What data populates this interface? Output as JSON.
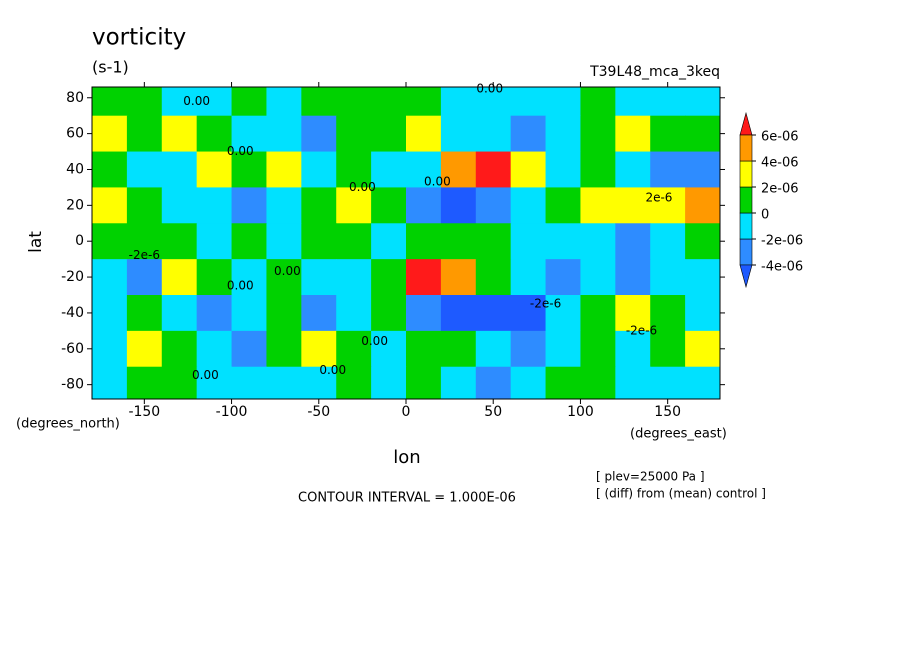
{
  "chart_data": {
    "type": "contour",
    "title": "vorticity",
    "units": "(s-1)",
    "dataset": "T39L48_mca_3keq",
    "x_label": "lon",
    "y_label": "lat",
    "x_units": "(degrees_east)",
    "y_units": "(degrees_north)",
    "footer": "CONTOUR INTERVAL = 1.000E-06",
    "notes": [
      "[ plev=25000 Pa ]",
      "[ (diff) from (mean) control ]"
    ],
    "xlim": [
      -180,
      180
    ],
    "ylim": [
      -88,
      86
    ],
    "xticks": [
      -150,
      -100,
      -50,
      0,
      50,
      100,
      150
    ],
    "yticks": [
      -80,
      -60,
      -40,
      -20,
      0,
      20,
      40,
      60,
      80
    ],
    "x": [
      -170,
      -150,
      -130,
      -110,
      -90,
      -70,
      -50,
      -30,
      -10,
      10,
      30,
      50,
      70,
      90,
      110,
      130,
      150,
      170
    ],
    "y": [
      80,
      60,
      40,
      20,
      0,
      -20,
      -40,
      -60,
      -80
    ],
    "z": [
      [
        1e-06,
        1e-06,
        -1e-06,
        -1e-06,
        1e-06,
        -1e-06,
        1e-06,
        1e-06,
        1e-06,
        1e-06,
        -1e-06,
        -1e-06,
        -1e-06,
        -1e-06,
        1e-06,
        -1e-06,
        -1e-06,
        -1e-06
      ],
      [
        3e-06,
        1e-06,
        3e-06,
        1e-06,
        -1e-06,
        -1e-06,
        -3e-06,
        1e-06,
        1e-06,
        3e-06,
        -1e-06,
        -1e-06,
        -3e-06,
        -1e-06,
        1e-06,
        3e-06,
        1e-06,
        1e-06
      ],
      [
        1e-06,
        -1e-06,
        -1e-06,
        3e-06,
        1e-06,
        3e-06,
        -1e-06,
        1e-06,
        -1e-06,
        -1e-06,
        5e-06,
        7e-06,
        3e-06,
        -1e-06,
        1e-06,
        -1e-06,
        -3e-06,
        -3e-06
      ],
      [
        3e-06,
        1e-06,
        -1e-06,
        -1e-06,
        -3e-06,
        -1e-06,
        1e-06,
        3e-06,
        1e-06,
        -3e-06,
        -5e-06,
        -3e-06,
        -1e-06,
        1e-06,
        3e-06,
        3e-06,
        3e-06,
        5e-06
      ],
      [
        1e-06,
        1e-06,
        1e-06,
        -1e-06,
        1e-06,
        -1e-06,
        1e-06,
        1e-06,
        -1e-06,
        1e-06,
        1e-06,
        1e-06,
        -1e-06,
        -1e-06,
        -1e-06,
        -3e-06,
        -1e-06,
        1e-06
      ],
      [
        -1e-06,
        -3e-06,
        3e-06,
        1e-06,
        -1e-06,
        1e-06,
        -1e-06,
        -1e-06,
        1e-06,
        7e-06,
        5e-06,
        1e-06,
        -1e-06,
        -3e-06,
        -1e-06,
        -3e-06,
        -1e-06,
        -1e-06
      ],
      [
        -1e-06,
        1e-06,
        -1e-06,
        -3e-06,
        -1e-06,
        1e-06,
        -3e-06,
        -1e-06,
        1e-06,
        -3e-06,
        -5e-06,
        -5e-06,
        -5e-06,
        -1e-06,
        1e-06,
        3e-06,
        1e-06,
        -1e-06
      ],
      [
        -1e-06,
        3e-06,
        1e-06,
        -1e-06,
        -3e-06,
        1e-06,
        3e-06,
        1e-06,
        -1e-06,
        1e-06,
        1e-06,
        -1e-06,
        -3e-06,
        -1e-06,
        1e-06,
        -1e-06,
        1e-06,
        3e-06
      ],
      [
        -1e-06,
        1e-06,
        1e-06,
        -1e-06,
        -1e-06,
        -1e-06,
        -1e-06,
        1e-06,
        -1e-06,
        1e-06,
        -1e-06,
        -3e-06,
        -1e-06,
        1e-06,
        1e-06,
        -1e-06,
        -1e-06,
        -1e-06
      ]
    ],
    "levels": [
      {
        "value": -4e-06,
        "label": "-4e-06"
      },
      {
        "value": -2e-06,
        "label": "-2e-06"
      },
      0,
      {
        "value": 2e-06,
        "label": "2e-06"
      },
      {
        "value": 4e-06,
        "label": "4e-06"
      },
      {
        "value": 6e-06,
        "label": "6e-06"
      }
    ],
    "colors": [
      "#1e5aff",
      "#2e8cff",
      "#00e1ff",
      "#00d200",
      "#ffff00",
      "#ff9900",
      "#ff1a1a"
    ],
    "annotations": [
      {
        "text": "0.00",
        "x": -120,
        "y": 78
      },
      {
        "text": "0.00",
        "x": 48,
        "y": 85
      },
      {
        "text": "0.00",
        "x": -95,
        "y": 50
      },
      {
        "text": "0.00",
        "x": -25,
        "y": 30
      },
      {
        "text": "0.00",
        "x": 18,
        "y": 33
      },
      {
        "text": "-2e-6",
        "x": -150,
        "y": -8
      },
      {
        "text": "0.00",
        "x": -68,
        "y": -17
      },
      {
        "text": "0.00",
        "x": -95,
        "y": -25
      },
      {
        "text": "0.00",
        "x": -18,
        "y": -56
      },
      {
        "text": "0.00",
        "x": -42,
        "y": -72
      },
      {
        "text": "0.00",
        "x": -115,
        "y": -75
      },
      {
        "text": "-2e-6",
        "x": 135,
        "y": -50
      },
      {
        "text": "2e-6",
        "x": 145,
        "y": 24
      },
      {
        "text": "-2e-6",
        "x": 80,
        "y": -35
      }
    ]
  }
}
